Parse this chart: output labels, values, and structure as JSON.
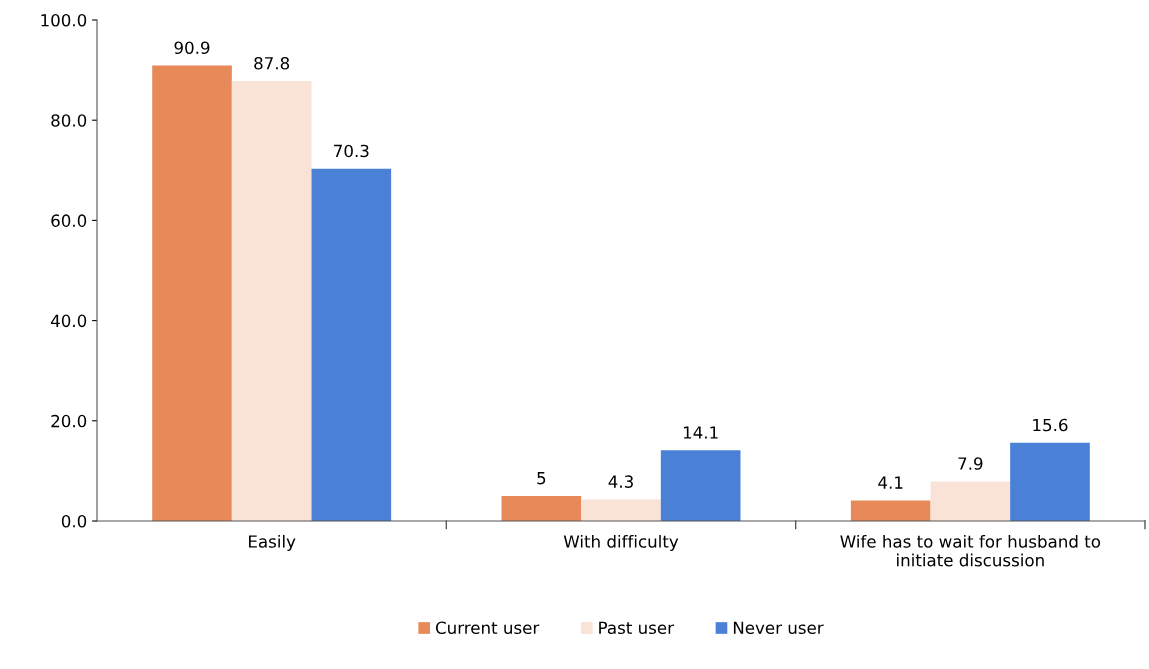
{
  "chart_data": {
    "type": "bar",
    "categories": [
      "Easily",
      "With difficulty",
      "Wife has to wait for husband to\ninitiate discussion"
    ],
    "series": [
      {
        "name": "Current user",
        "color": "#e8895a",
        "values": [
          90.9,
          5,
          4.1
        ]
      },
      {
        "name": "Past user",
        "color": "#f9e3d6",
        "values": [
          87.8,
          4.3,
          7.9
        ]
      },
      {
        "name": "Never user",
        "color": "#4a80d6",
        "values": [
          70.3,
          14.1,
          15.6
        ]
      }
    ],
    "ylim": [
      0,
      100
    ],
    "yticks": [
      {
        "value": 0,
        "label": "0.0"
      },
      {
        "value": 20,
        "label": "20.0"
      },
      {
        "value": 40,
        "label": "40.0"
      },
      {
        "value": 60,
        "label": "60.0"
      },
      {
        "value": 80,
        "label": "80.0"
      },
      {
        "value": 100,
        "label": "100.0"
      }
    ],
    "data_labels": true,
    "grid": false,
    "legend": "bottom"
  }
}
